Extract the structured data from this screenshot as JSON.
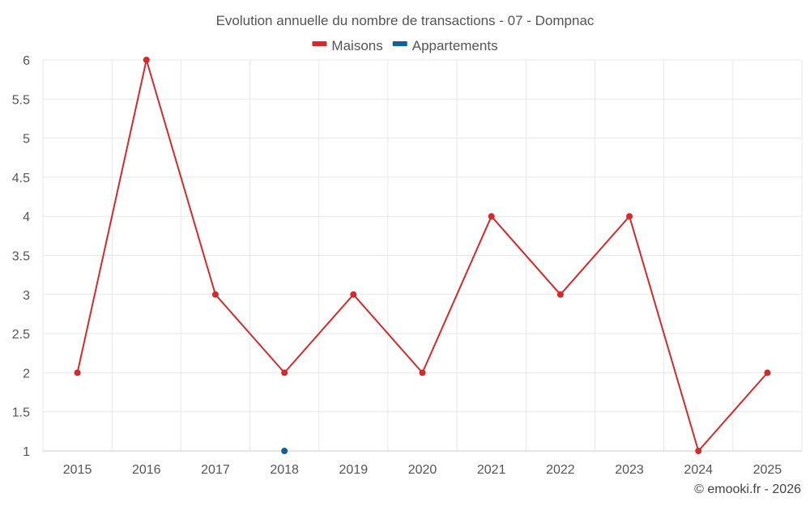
{
  "chart_data": {
    "type": "line",
    "title": "Evolution annuelle du nombre de transactions - 07 - Dompnac",
    "xlabel": "",
    "ylabel": "",
    "categories": [
      "2015",
      "2016",
      "2017",
      "2018",
      "2019",
      "2020",
      "2021",
      "2022",
      "2023",
      "2024",
      "2025"
    ],
    "ylim": [
      1,
      6
    ],
    "yticks": [
      "1",
      "1.5",
      "2",
      "2.5",
      "3",
      "3.5",
      "4",
      "4.5",
      "5",
      "5.5",
      "6"
    ],
    "grid": true,
    "legend_position": "top-center",
    "series": [
      {
        "name": "Maisons",
        "color": "#d32a2a",
        "values": [
          2,
          6,
          3,
          2,
          3,
          2,
          4,
          3,
          4,
          1,
          2
        ]
      },
      {
        "name": "Appartements",
        "color": "#0e6199",
        "values": [
          null,
          null,
          null,
          1,
          null,
          null,
          null,
          null,
          null,
          null,
          null
        ]
      }
    ]
  },
  "credit": "© emooki.fr - 2026"
}
